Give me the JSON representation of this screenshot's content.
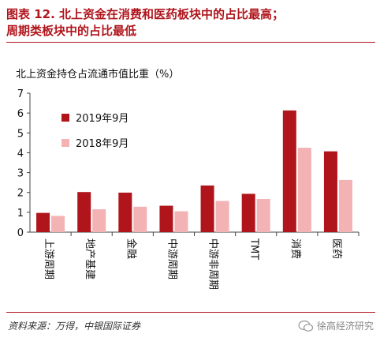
{
  "title": {
    "line1": "图表 12. 北上资金在消费和医药板块中的占比最高；",
    "line2": "周期类板块中的占比最低"
  },
  "source": "资料来源：万得，中银国际证券",
  "watermark": "徐高经济研究",
  "colors": {
    "accent": "#b0151c",
    "series2019": "#b0151c",
    "series2018": "#f3b2b4"
  },
  "chart_data": {
    "type": "bar",
    "title": "北上资金持仓占流通市值比重（%）",
    "categories": [
      "上游周期",
      "地产基建",
      "金融",
      "中游周期",
      "中游非周期",
      "TMT",
      "消费",
      "医药"
    ],
    "series": [
      {
        "name": "2019年9月",
        "values": [
          0.97,
          2.02,
          1.99,
          1.33,
          2.35,
          1.93,
          6.13,
          4.07
        ]
      },
      {
        "name": "2018年9月",
        "values": [
          0.82,
          1.15,
          1.28,
          1.05,
          1.57,
          1.67,
          4.25,
          2.63
        ]
      }
    ],
    "ylim": [
      0,
      7
    ],
    "yticks": [
      0,
      1,
      2,
      3,
      4,
      5,
      6,
      7
    ],
    "xlabel": "",
    "ylabel": "",
    "grid": false,
    "legend_position": "top-left"
  }
}
